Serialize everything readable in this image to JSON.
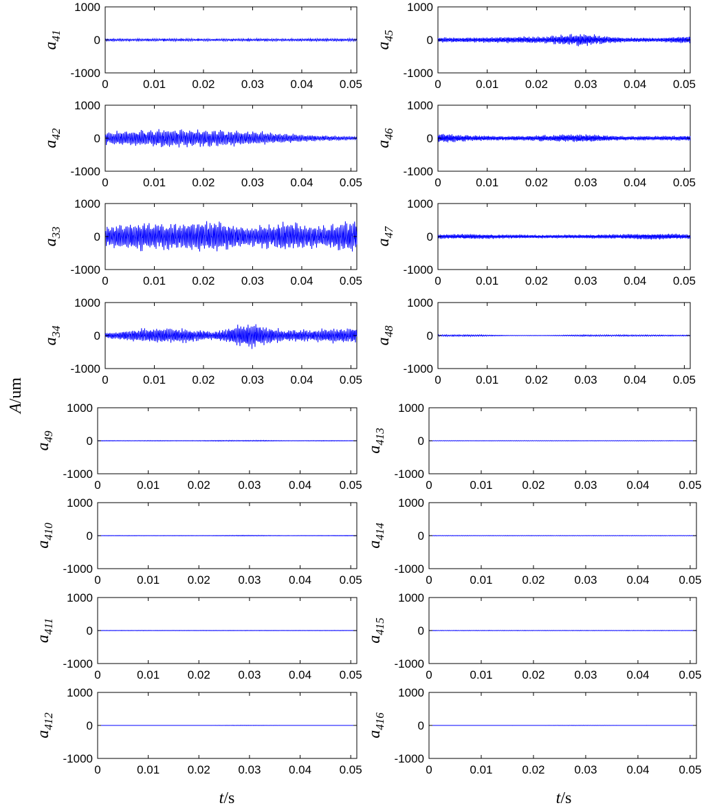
{
  "chart_data": {
    "type": "line",
    "shared_y_label": {
      "main": "A",
      "rest": "/um"
    },
    "shared_x_label": {
      "main": "t",
      "rest": "/s"
    },
    "xlim": [
      0,
      0.0512
    ],
    "ylim": [
      -1000,
      1000
    ],
    "xticks": [
      "0",
      "0.01",
      "0.02",
      "0.03",
      "0.04",
      "0.05"
    ],
    "yticks": [
      "1000",
      "0",
      "-1000"
    ],
    "panels": [
      {
        "label": {
          "base": "a",
          "sub": "41"
        },
        "col": 0,
        "row": 0,
        "amplitude_estimate": 40,
        "envelope": [
          0.9,
          0.8,
          1.0,
          0.7,
          0.9,
          0.8,
          1.0,
          0.9
        ]
      },
      {
        "label": {
          "base": "a",
          "sub": "42"
        },
        "col": 0,
        "row": 1,
        "amplitude_estimate": 260,
        "envelope": [
          0.7,
          0.9,
          1.0,
          0.9,
          0.8,
          0.5,
          0.3,
          0.2
        ]
      },
      {
        "label": {
          "base": "a",
          "sub": "33"
        },
        "col": 0,
        "row": 2,
        "amplitude_estimate": 450,
        "envelope": [
          0.7,
          0.9,
          0.8,
          1.0,
          0.6,
          0.9,
          0.7,
          1.0
        ]
      },
      {
        "label": {
          "base": "a",
          "sub": "34"
        },
        "col": 0,
        "row": 3,
        "amplitude_estimate": 380,
        "envelope": [
          0.2,
          0.5,
          0.6,
          0.3,
          1.0,
          0.4,
          0.5,
          0.6
        ]
      },
      {
        "label": {
          "base": "a",
          "sub": "49"
        },
        "col": 0,
        "row": 4,
        "amplitude_estimate": 15,
        "envelope": [
          0.5,
          0.5,
          0.5,
          0.6,
          1.0,
          0.5,
          0.5,
          0.5
        ]
      },
      {
        "label": {
          "base": "a",
          "sub": "410"
        },
        "col": 0,
        "row": 5,
        "amplitude_estimate": 12,
        "envelope": [
          0.5,
          0.5,
          0.5,
          0.5,
          1.0,
          0.5,
          0.5,
          0.8
        ]
      },
      {
        "label": {
          "base": "a",
          "sub": "411"
        },
        "col": 0,
        "row": 6,
        "amplitude_estimate": 10,
        "envelope": [
          0.6,
          0.6,
          0.6,
          0.6,
          0.6,
          0.6,
          0.6,
          0.6
        ]
      },
      {
        "label": {
          "base": "a",
          "sub": "412"
        },
        "col": 0,
        "row": 7,
        "amplitude_estimate": 5,
        "envelope": [
          0.2,
          0.2,
          0.2,
          0.2,
          1.0,
          0.2,
          0.2,
          0.2
        ]
      },
      {
        "label": {
          "base": "a",
          "sub": "45"
        },
        "col": 1,
        "row": 0,
        "amplitude_estimate": 180,
        "envelope": [
          0.4,
          0.4,
          0.5,
          0.6,
          1.0,
          0.4,
          0.3,
          0.6
        ]
      },
      {
        "label": {
          "base": "a",
          "sub": "46"
        },
        "col": 1,
        "row": 1,
        "amplitude_estimate": 150,
        "envelope": [
          1.0,
          0.5,
          0.4,
          0.6,
          0.8,
          0.4,
          0.4,
          0.5
        ]
      },
      {
        "label": {
          "base": "a",
          "sub": "47"
        },
        "col": 1,
        "row": 2,
        "amplitude_estimate": 90,
        "envelope": [
          0.7,
          0.8,
          0.6,
          0.5,
          0.6,
          0.7,
          1.0,
          0.7
        ]
      },
      {
        "label": {
          "base": "a",
          "sub": "48"
        },
        "col": 1,
        "row": 3,
        "amplitude_estimate": 25,
        "envelope": [
          0.8,
          0.9,
          0.2,
          0.2,
          0.8,
          0.8,
          0.7,
          0.6
        ]
      },
      {
        "label": {
          "base": "a",
          "sub": "413"
        },
        "col": 1,
        "row": 4,
        "amplitude_estimate": 10,
        "envelope": [
          0.6,
          0.6,
          0.6,
          0.6,
          0.6,
          0.6,
          0.6,
          0.6
        ]
      },
      {
        "label": {
          "base": "a",
          "sub": "414"
        },
        "col": 1,
        "row": 5,
        "amplitude_estimate": 10,
        "envelope": [
          0.6,
          0.6,
          0.6,
          0.6,
          0.6,
          0.6,
          0.6,
          0.6
        ]
      },
      {
        "label": {
          "base": "a",
          "sub": "415"
        },
        "col": 1,
        "row": 6,
        "amplitude_estimate": 10,
        "envelope": [
          0.6,
          0.6,
          0.6,
          0.6,
          0.6,
          0.6,
          0.6,
          0.6
        ]
      },
      {
        "label": {
          "base": "a",
          "sub": "416"
        },
        "col": 1,
        "row": 7,
        "amplitude_estimate": 5,
        "envelope": [
          0.2,
          0.2,
          0.2,
          0.2,
          1.0,
          0.2,
          0.2,
          0.2
        ]
      }
    ],
    "trace_color": "#0000ff",
    "grid": false,
    "legend": "none"
  }
}
